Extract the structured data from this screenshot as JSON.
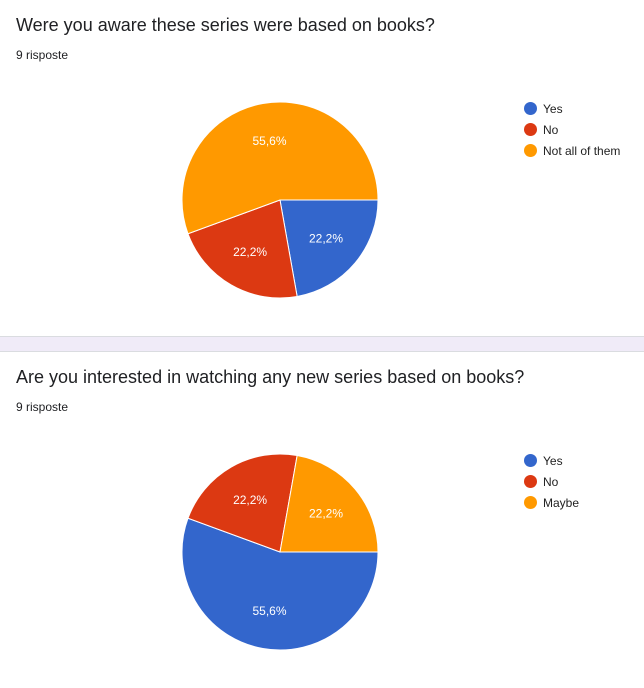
{
  "questions": [
    {
      "title": "Were you aware these series were based on books?",
      "responses": "9 risposte",
      "chart_data": {
        "type": "pie",
        "categories": [
          "Yes",
          "No",
          "Not all of them"
        ],
        "values": [
          22.2,
          22.2,
          55.6
        ],
        "labels": [
          "22,2%",
          "22,2%",
          "55,6%"
        ],
        "colors": [
          "#3366cc",
          "#dc3912",
          "#ff9900"
        ],
        "legend": "right"
      }
    },
    {
      "title": "Are you interested in watching any new series based on books?",
      "responses": "9 risposte",
      "chart_data": {
        "type": "pie",
        "categories": [
          "Yes",
          "No",
          "Maybe"
        ],
        "values": [
          55.6,
          22.2,
          22.2
        ],
        "labels": [
          "55,6%",
          "22,2%",
          "22,2%"
        ],
        "colors": [
          "#3366cc",
          "#dc3912",
          "#ff9900"
        ],
        "legend": "right"
      }
    }
  ]
}
